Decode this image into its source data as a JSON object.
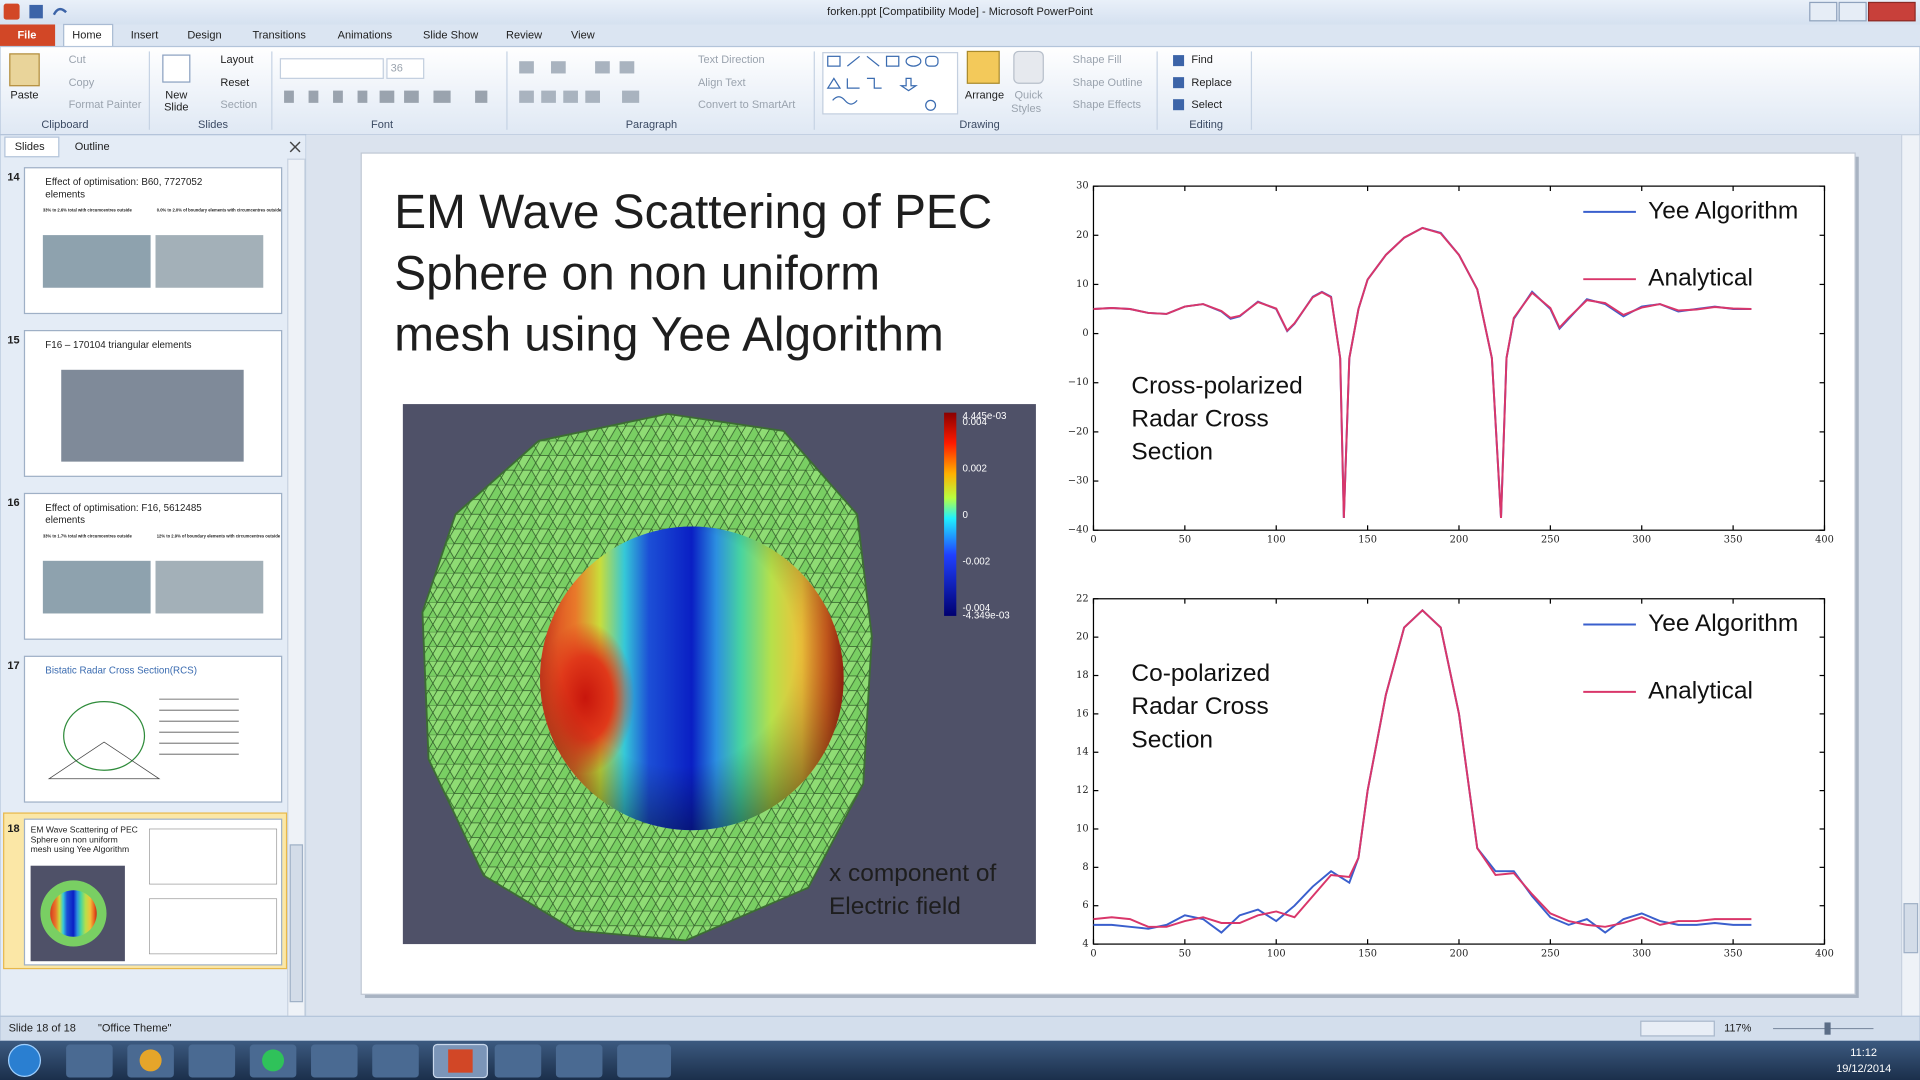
{
  "window": {
    "title": "forken.ppt [Compatibility Mode]  -  Microsoft PowerPoint"
  },
  "ribbon": {
    "tabs": [
      "File",
      "Home",
      "Insert",
      "Design",
      "Transitions",
      "Animations",
      "Slide Show",
      "Review",
      "View"
    ],
    "clipboard": {
      "label": "Clipboard",
      "paste": "Paste",
      "cut": "Cut",
      "copy": "Copy",
      "format_painter": "Format Painter"
    },
    "slides": {
      "label": "Slides",
      "new_slide": [
        "New",
        "Slide"
      ],
      "layout": "Layout",
      "reset": "Reset",
      "section": "Section"
    },
    "font": {
      "label": "Font",
      "size": "36"
    },
    "paragraph": {
      "label": "Paragraph",
      "text_direction": "Text Direction",
      "align_text": "Align Text",
      "convert": "Convert to SmartArt"
    },
    "drawing": {
      "label": "Drawing",
      "arrange": "Arrange",
      "quick_styles": [
        "Quick",
        "Styles"
      ],
      "shape_fill": "Shape Fill",
      "shape_outline": "Shape Outline",
      "shape_effects": "Shape Effects"
    },
    "editing": {
      "label": "Editing",
      "find": "Find",
      "replace": "Replace",
      "select": "Select"
    }
  },
  "pane": {
    "tabs": [
      "Slides",
      "Outline"
    ],
    "thumbnails": [
      {
        "number": 14,
        "title": [
          "Effect of optimisation: B60, 7727052",
          "elements"
        ],
        "notes": [
          "33% to 2.6% total with circumcentres outside",
          "0.0% to 2.0% of boundary elements with circumcentres outside"
        ]
      },
      {
        "number": 15,
        "title": [
          "F16 – 170104 triangular elements"
        ]
      },
      {
        "number": 16,
        "title": [
          "Effect of optimisation: F16, 5612485",
          "elements"
        ],
        "notes": [
          "33% to 1.7% total with circumcentres outside",
          "12% to 2.9% of boundary elements with circumcentres outside"
        ]
      },
      {
        "number": 17,
        "title": [
          "Bistatic Radar Cross Section(RCS)"
        ]
      },
      {
        "number": 18
      }
    ]
  },
  "status": {
    "slide": "Slide 18 of 18",
    "theme": "\"Office Theme\"",
    "zoom": "117%"
  },
  "taskbar": {
    "time": "11:12",
    "date": "19/12/2014"
  },
  "slide": {
    "title": [
      "EM Wave Scattering of PEC",
      "Sphere on non uniform",
      "mesh using Yee Algorithm"
    ],
    "image": {
      "caption": [
        "x component of",
        "Electric field"
      ],
      "colorbar": [
        "4.445e-03",
        "0.004",
        "0.002",
        "0",
        "-0.002",
        "-0.004",
        "-4.349e-03"
      ]
    }
  },
  "chart_data": [
    {
      "type": "line",
      "annotation": [
        "Cross-polarized",
        "Radar Cross",
        "Section"
      ],
      "legend": "upper right",
      "x": [
        0,
        10,
        20,
        30,
        40,
        50,
        60,
        70,
        75,
        80,
        90,
        100,
        106,
        110,
        120,
        125,
        130,
        135,
        137,
        140,
        145,
        150,
        160,
        170,
        180,
        190,
        200,
        210,
        218,
        223,
        226,
        230,
        240,
        250,
        255,
        260,
        270,
        280,
        290,
        300,
        310,
        320,
        330,
        340,
        350,
        360
      ],
      "xlim": [
        0,
        400
      ],
      "xticks": [
        0,
        50,
        100,
        150,
        200,
        250,
        300,
        350,
        400
      ],
      "ylim": [
        -40,
        30
      ],
      "yticks": [
        {
          "value": -40,
          "label": "−40"
        },
        {
          "value": -30,
          "label": "−30"
        },
        {
          "value": -20,
          "label": "−20"
        },
        {
          "value": -10,
          "label": "−10"
        },
        0,
        10,
        20,
        30
      ],
      "series": [
        {
          "name": "Yee Algorithm",
          "color": "#3a5fcd",
          "values": [
            5,
            5.2,
            5,
            4.2,
            4,
            5.5,
            6,
            4.5,
            3,
            3.5,
            6.5,
            5,
            0.5,
            2,
            7.5,
            8.5,
            7.5,
            -5,
            -37.5,
            -5,
            5,
            11,
            16,
            19.5,
            21.5,
            20.5,
            16,
            9,
            -5,
            -37.5,
            -5,
            3,
            8.5,
            5,
            1,
            3,
            7,
            6,
            3.5,
            5.5,
            6,
            4.5,
            5,
            5.5,
            5,
            5
          ]
        },
        {
          "name": "Analytical",
          "color": "#d9366a",
          "values": [
            5,
            5.2,
            5,
            4.2,
            4,
            5.5,
            6,
            4.6,
            3.2,
            3.6,
            6.4,
            5.1,
            0.6,
            2.1,
            7.4,
            8.4,
            7.4,
            -5,
            -37.5,
            -5,
            5,
            11,
            16,
            19.5,
            21.5,
            20.4,
            16,
            9,
            -5,
            -37.5,
            -5,
            3.2,
            8.3,
            5.2,
            1.2,
            3.2,
            6.8,
            6.2,
            3.8,
            5.3,
            6,
            4.7,
            4.9,
            5.4,
            5.1,
            5
          ]
        }
      ]
    },
    {
      "type": "line",
      "annotation": [
        "Co-polarized",
        "Radar Cross",
        "Section"
      ],
      "legend": "upper right",
      "x": [
        0,
        10,
        20,
        30,
        40,
        50,
        60,
        70,
        80,
        90,
        100,
        110,
        120,
        130,
        140,
        145,
        150,
        160,
        170,
        180,
        190,
        200,
        210,
        220,
        230,
        240,
        250,
        260,
        270,
        280,
        290,
        300,
        310,
        320,
        330,
        340,
        350,
        360
      ],
      "xlim": [
        0,
        400
      ],
      "xticks": [
        0,
        50,
        100,
        150,
        200,
        250,
        300,
        350,
        400
      ],
      "ylim": [
        4,
        22
      ],
      "yticks": [
        4,
        6,
        8,
        10,
        12,
        14,
        16,
        18,
        20,
        22
      ],
      "series": [
        {
          "name": "Yee Algorithm",
          "color": "#3a5fcd",
          "values": [
            5.0,
            5.0,
            4.9,
            4.8,
            5.0,
            5.5,
            5.3,
            4.6,
            5.5,
            5.8,
            5.2,
            6.0,
            7.0,
            7.8,
            7.2,
            8.5,
            12,
            17,
            20.5,
            21.4,
            20.5,
            16,
            9,
            7.8,
            7.8,
            6.5,
            5.4,
            5.0,
            5.3,
            4.6,
            5.3,
            5.6,
            5.2,
            5.0,
            5.0,
            5.1,
            5.0,
            5.0
          ]
        },
        {
          "name": "Analytical",
          "color": "#d9366a",
          "values": [
            5.3,
            5.4,
            5.3,
            4.9,
            4.9,
            5.2,
            5.4,
            5.1,
            5.1,
            5.5,
            5.7,
            5.4,
            6.5,
            7.6,
            7.5,
            8.5,
            12,
            17,
            20.5,
            21.4,
            20.5,
            16,
            9,
            7.6,
            7.7,
            6.6,
            5.6,
            5.2,
            5.0,
            4.9,
            5.1,
            5.4,
            5.0,
            5.2,
            5.2,
            5.3,
            5.3,
            5.3
          ]
        }
      ]
    }
  ]
}
